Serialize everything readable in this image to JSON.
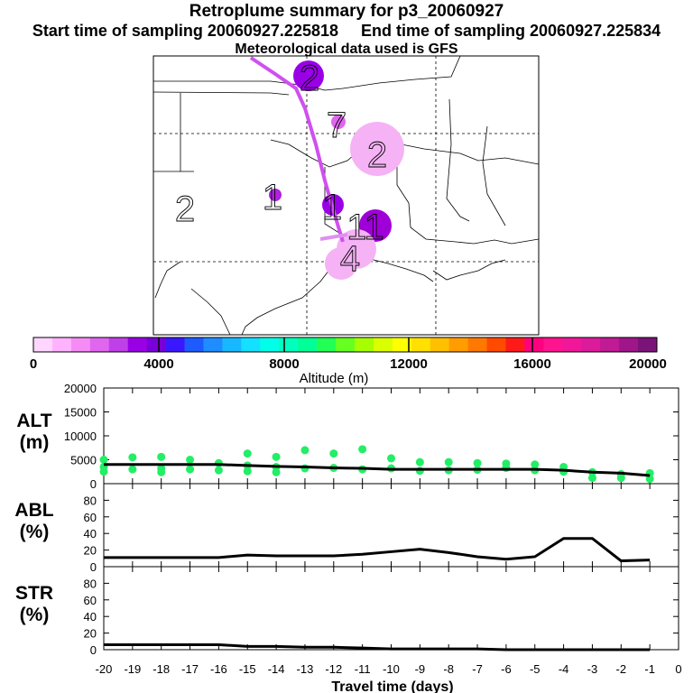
{
  "header": {
    "title": "Retroplume summary for p3_20060927",
    "start_label": "Start time of sampling 20060927.225818",
    "end_label": "End time of sampling 20060927.225834",
    "met_label": "Meteorological data used is GFS"
  },
  "colorbar": {
    "colors": [
      "#ffd6ff",
      "#ffb3ff",
      "#f58cf5",
      "#e066f0",
      "#c040e8",
      "#9a00e6",
      "#7a00d9",
      "#3a18ff",
      "#1e5bff",
      "#1f8cff",
      "#18b8ff",
      "#14e0ff",
      "#00ffe8",
      "#00ffbf",
      "#00ff96",
      "#22ff55",
      "#66ff22",
      "#a6ff00",
      "#d9ff00",
      "#ffff00",
      "#ffe000",
      "#ffc000",
      "#ff9c00",
      "#ff7800",
      "#ff4a00",
      "#ff1a1a",
      "#ff0080",
      "#ff1490",
      "#f01898",
      "#dc1a9c",
      "#c01a94",
      "#9e168a",
      "#7a1478"
    ],
    "tick_labels": [
      "0",
      "4000",
      "8000",
      "12000",
      "16000",
      "20000"
    ],
    "label": "Altitude (m)"
  },
  "map_labels": [
    "2",
    "1",
    "1",
    "11",
    "4",
    "7",
    "2",
    "2"
  ],
  "chart_data": [
    {
      "type": "scatter",
      "name": "ALT",
      "ylabel_line1": "ALT",
      "ylabel_line2": "(m)",
      "ylim": [
        0,
        20000
      ],
      "yticks": [
        "0",
        "5000",
        "10000",
        "15000",
        "20000"
      ],
      "x": [
        -20,
        -19,
        -18,
        -17,
        -16,
        -15,
        -14,
        -13,
        -12,
        -11,
        -10,
        -9,
        -8,
        -7,
        -6,
        -5,
        -4,
        -3,
        -2,
        -1
      ],
      "median": [
        4000,
        4000,
        4000,
        4000,
        4000,
        3800,
        3600,
        3500,
        3300,
        3200,
        3000,
        3000,
        3000,
        3000,
        3000,
        3000,
        2800,
        2400,
        2200,
        1700
      ],
      "scatter_points": [
        [
          -20,
          5000
        ],
        [
          -20,
          3500
        ],
        [
          -20,
          2500
        ],
        [
          -19,
          5500
        ],
        [
          -19,
          3000
        ],
        [
          -18,
          5600
        ],
        [
          -18,
          3200
        ],
        [
          -18,
          2400
        ],
        [
          -17,
          5000
        ],
        [
          -17,
          3000
        ],
        [
          -16,
          4300
        ],
        [
          -16,
          2800
        ],
        [
          -15,
          6300
        ],
        [
          -15,
          3800
        ],
        [
          -15,
          2600
        ],
        [
          -14,
          5600
        ],
        [
          -14,
          3500
        ],
        [
          -14,
          2400
        ],
        [
          -13,
          7000
        ],
        [
          -13,
          3200
        ],
        [
          -12,
          6300
        ],
        [
          -12,
          3300
        ],
        [
          -11,
          7200
        ],
        [
          -11,
          3000
        ],
        [
          -10,
          5300
        ],
        [
          -10,
          3200
        ],
        [
          -9,
          4500
        ],
        [
          -9,
          2700
        ],
        [
          -8,
          4500
        ],
        [
          -8,
          2800
        ],
        [
          -7,
          4300
        ],
        [
          -7,
          2900
        ],
        [
          -6,
          4200
        ],
        [
          -6,
          3300
        ],
        [
          -5,
          4000
        ],
        [
          -5,
          2800
        ],
        [
          -4,
          3500
        ],
        [
          -4,
          2500
        ],
        [
          -3,
          2400
        ],
        [
          -3,
          1200
        ],
        [
          -2,
          2000
        ],
        [
          -2,
          1200
        ],
        [
          -1,
          2200
        ],
        [
          -1,
          1000
        ]
      ]
    },
    {
      "type": "line",
      "name": "ABL",
      "ylabel_line1": "ABL",
      "ylabel_line2": "(%)",
      "ylim": [
        0,
        100
      ],
      "yticks": [
        "0",
        "20",
        "40",
        "60",
        "80"
      ],
      "x": [
        -20,
        -19,
        -18,
        -17,
        -16,
        -15,
        -14,
        -13,
        -12,
        -11,
        -10,
        -9,
        -8,
        -7,
        -6,
        -5,
        -4,
        -3,
        -2,
        -1
      ],
      "values": [
        11,
        11,
        11,
        11,
        11,
        14,
        13,
        13,
        13,
        15,
        18,
        21,
        17,
        12,
        9,
        12,
        34,
        34,
        7,
        8
      ]
    },
    {
      "type": "line",
      "name": "STR",
      "ylabel_line1": "STR",
      "ylabel_line2": "(%)",
      "ylim": [
        0,
        100
      ],
      "yticks": [
        "0",
        "20",
        "40",
        "60",
        "80"
      ],
      "x": [
        -20,
        -19,
        -18,
        -17,
        -16,
        -15,
        -14,
        -13,
        -12,
        -11,
        -10,
        -9,
        -8,
        -7,
        -6,
        -5,
        -4,
        -3,
        -2,
        -1
      ],
      "values": [
        6,
        6,
        6,
        6,
        6,
        4,
        4,
        3,
        3,
        2,
        1,
        1,
        1,
        1,
        0,
        0,
        0,
        0,
        0,
        0
      ]
    }
  ],
  "xaxis": {
    "ticks": [
      "-20",
      "-19",
      "-18",
      "-17",
      "-16",
      "-15",
      "-14",
      "-13",
      "-12",
      "-11",
      "-10",
      "-9",
      "-8",
      "-7",
      "-6",
      "-5",
      "-4",
      "-3",
      "-2",
      "-1",
      "0"
    ],
    "label": "Travel time (days)"
  }
}
